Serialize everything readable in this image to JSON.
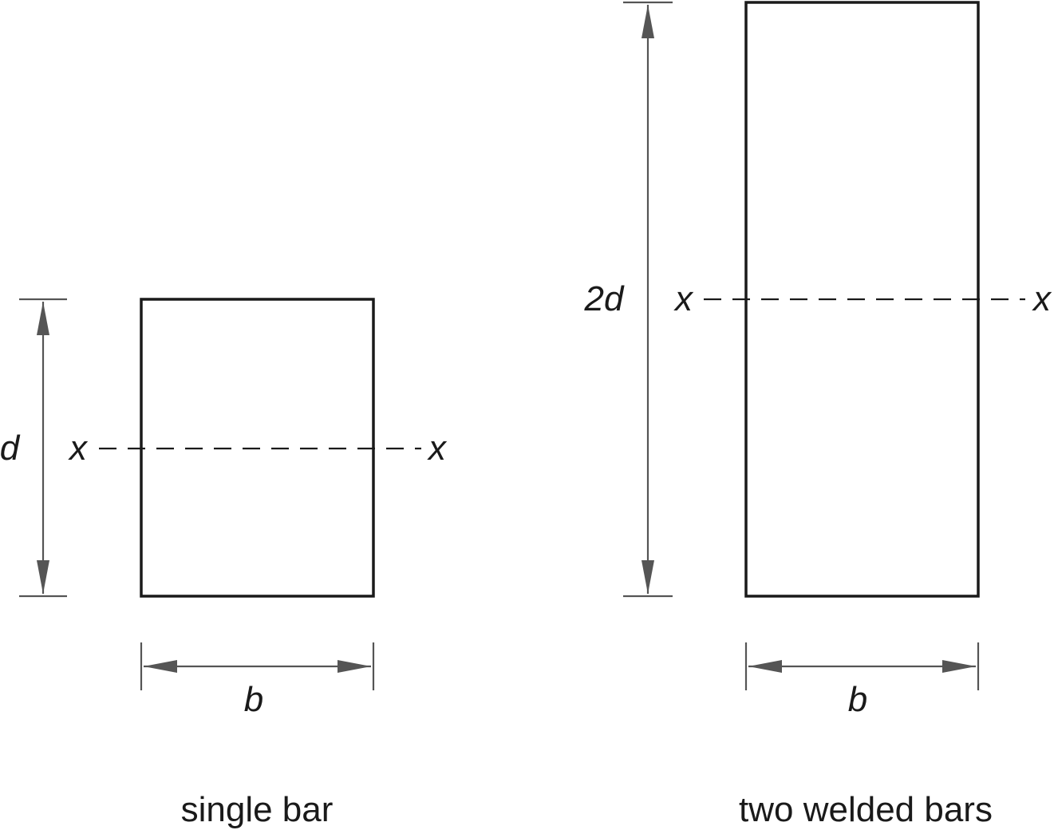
{
  "single_bar": {
    "caption": "single bar",
    "height_label": "d",
    "width_label": "b",
    "axis_label_left": "x",
    "axis_label_right": "x"
  },
  "two_welded_bars": {
    "caption": "two welded bars",
    "height_label": "2d",
    "width_label": "b",
    "axis_label_left": "x",
    "axis_label_right": "x"
  },
  "colors": {
    "outline": "#1a1a1a",
    "dimension": "#555555"
  }
}
